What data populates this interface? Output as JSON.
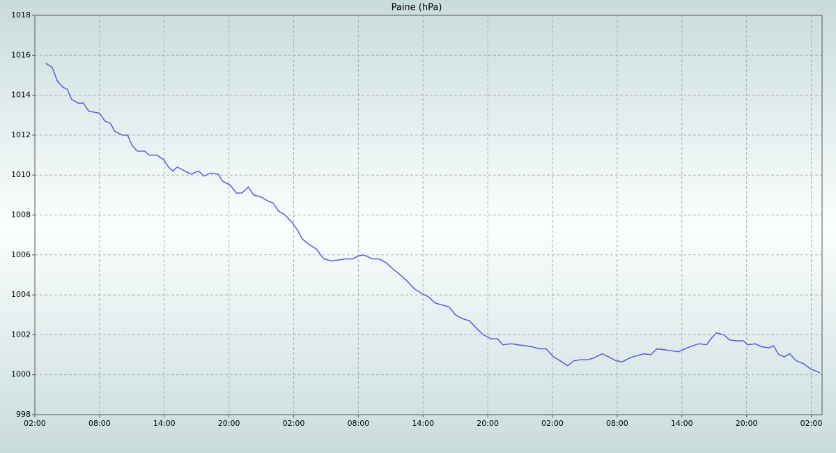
{
  "chart_data": {
    "type": "line",
    "title": "Paine (hPa)",
    "x": [
      1.0,
      1.6,
      2.1,
      2.6,
      3.0,
      3.4,
      4.0,
      4.5,
      5.0,
      6.0,
      6.5,
      7.0,
      7.4,
      8.1,
      8.6,
      9.0,
      9.5,
      10.2,
      10.6,
      11.3,
      11.9,
      12.4,
      12.8,
      13.2,
      13.9,
      14.5,
      15.2,
      15.7,
      16.3,
      17.0,
      17.4,
      18.1,
      18.7,
      19.2,
      19.8,
      20.3,
      21.0,
      21.6,
      22.1,
      22.6,
      23.2,
      23.9,
      24.4,
      24.8,
      25.5,
      26.1,
      26.8,
      27.5,
      28.2,
      28.8,
      29.5,
      30.0,
      30.5,
      31.3,
      31.9,
      32.6,
      33.2,
      33.9,
      34.5,
      35.2,
      35.8,
      36.5,
      37.1,
      37.7,
      38.4,
      39.0,
      39.7,
      40.3,
      41.0,
      41.6,
      42.3,
      42.9,
      43.4,
      44.2,
      44.8,
      45.5,
      46.1,
      46.8,
      47.4,
      48.1,
      48.7,
      49.4,
      50.0,
      50.6,
      51.3,
      51.9,
      52.6,
      53.2,
      53.9,
      54.5,
      55.2,
      55.8,
      56.5,
      57.1,
      57.7,
      58.4,
      59.0,
      59.7,
      60.3,
      61.0,
      61.6,
      62.3,
      62.7,
      63.2,
      63.9,
      64.4,
      65.0,
      65.7,
      66.1,
      66.8,
      67.4,
      68.1,
      68.5,
      69.0,
      69.5,
      70.0,
      70.6,
      71.3,
      71.9,
      72.8
    ],
    "series": [
      {
        "name": "Paine",
        "color": "#5a5ae0",
        "values": [
          1015.6,
          1015.4,
          1014.7,
          1014.4,
          1014.3,
          1013.8,
          1013.6,
          1013.6,
          1013.2,
          1013.1,
          1012.7,
          1012.6,
          1012.2,
          1012.0,
          1012.0,
          1011.5,
          1011.2,
          1011.2,
          1011.0,
          1011.0,
          1010.8,
          1010.4,
          1010.2,
          1010.4,
          1010.2,
          1010.05,
          1010.2,
          1009.95,
          1010.1,
          1010.05,
          1009.7,
          1009.5,
          1009.1,
          1009.1,
          1009.4,
          1009.0,
          1008.9,
          1008.7,
          1008.6,
          1008.2,
          1008.0,
          1007.6,
          1007.2,
          1006.8,
          1006.5,
          1006.3,
          1005.8,
          1005.7,
          1005.75,
          1005.8,
          1005.8,
          1005.95,
          1006.0,
          1005.8,
          1005.8,
          1005.6,
          1005.3,
          1005.0,
          1004.7,
          1004.3,
          1004.1,
          1003.9,
          1003.6,
          1003.5,
          1003.4,
          1003.0,
          1002.8,
          1002.7,
          1002.3,
          1002.0,
          1001.8,
          1001.8,
          1001.5,
          1001.55,
          1001.5,
          1001.45,
          1001.4,
          1001.3,
          1001.3,
          1000.9,
          1000.7,
          1000.45,
          1000.7,
          1000.75,
          1000.75,
          1000.85,
          1001.05,
          1000.9,
          1000.7,
          1000.65,
          1000.85,
          1000.95,
          1001.05,
          1001.0,
          1001.3,
          1001.25,
          1001.2,
          1001.15,
          1001.3,
          1001.45,
          1001.55,
          1001.5,
          1001.8,
          1002.1,
          1002.0,
          1001.75,
          1001.7,
          1001.7,
          1001.5,
          1001.55,
          1001.4,
          1001.35,
          1001.45,
          1001.0,
          1000.9,
          1001.05,
          1000.7,
          1000.55,
          1000.3,
          1000.1
        ]
      }
    ],
    "xlim": [
      0,
      73
    ],
    "xticks": [
      {
        "value": 0,
        "label": "02:00"
      },
      {
        "value": 6,
        "label": "08:00"
      },
      {
        "value": 12,
        "label": "14:00"
      },
      {
        "value": 18,
        "label": "20:00"
      },
      {
        "value": 24,
        "label": "02:00"
      },
      {
        "value": 30,
        "label": "08:00"
      },
      {
        "value": 36,
        "label": "14:00"
      },
      {
        "value": 42,
        "label": "20:00"
      },
      {
        "value": 48,
        "label": "02:00"
      },
      {
        "value": 54,
        "label": "08:00"
      },
      {
        "value": 60,
        "label": "14:00"
      },
      {
        "value": 66,
        "label": "20:00"
      },
      {
        "value": 72,
        "label": "02:00"
      }
    ],
    "ylim": [
      998,
      1018
    ],
    "yticks": [
      998,
      1000,
      1002,
      1004,
      1006,
      1008,
      1010,
      1012,
      1014,
      1016,
      1018
    ],
    "grid": true
  }
}
